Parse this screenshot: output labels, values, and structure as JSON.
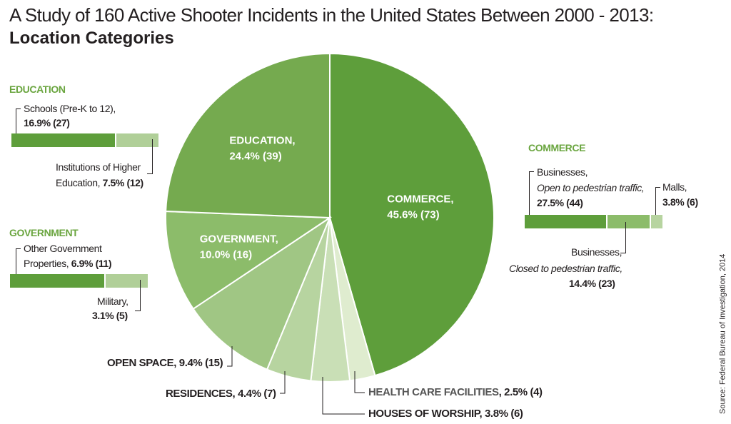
{
  "title": "A Study of 160 Active Shooter Incidents in the United States Between 2000 - 2013:",
  "subtitle": "Location Categories",
  "source": "Source: Federal Bureau of Investigation, 2014",
  "colors": {
    "commerce": "#5e9e3b",
    "education": "#75aa4f",
    "government": "#8cbc6a",
    "open_space": "#a0c684",
    "residences": "#b7d4a0",
    "houses_of_worship": "#c9dfb6",
    "health_care": "#dfeccf"
  },
  "chart_data": [
    {
      "type": "pie",
      "slices": [
        {
          "name": "COMMERCE",
          "value": 45.6,
          "count": 73,
          "label": "COMMERCE,",
          "value_label": "45.6% (73)"
        },
        {
          "name": "HEALTH CARE FACILITIES",
          "value": 2.5,
          "count": 4,
          "label": "HEALTH CARE FACILITIES",
          "value_label": ", 2.5% (4)"
        },
        {
          "name": "HOUSES OF WORSHIP",
          "value": 3.8,
          "count": 6,
          "label": "HOUSES OF WORSHIP",
          "value_label": ", 3.8% (6)"
        },
        {
          "name": "RESIDENCES",
          "value": 4.4,
          "count": 7,
          "label": "RESIDENCES",
          "value_label": ", 4.4% (7)"
        },
        {
          "name": "OPEN SPACE",
          "value": 9.4,
          "count": 15,
          "label": "OPEN SPACE",
          "value_label": ", 9.4% (15)"
        },
        {
          "name": "GOVERNMENT",
          "value": 10.0,
          "count": 16,
          "label": "GOVERNMENT,",
          "value_label": "10.0% (16)"
        },
        {
          "name": "EDUCATION",
          "value": 24.4,
          "count": 39,
          "label": "EDUCATION,",
          "value_label": "24.4% (39)"
        }
      ]
    },
    {
      "type": "bar",
      "orientation": "horizontal-stacked",
      "group": "EDUCATION",
      "series": [
        {
          "name": "Schools (Pre-K to 12)",
          "value": 16.9,
          "count": 27
        },
        {
          "name": "Institutions of Higher Education",
          "value": 7.5,
          "count": 12
        }
      ]
    },
    {
      "type": "bar",
      "orientation": "horizontal-stacked",
      "group": "GOVERNMENT",
      "series": [
        {
          "name": "Other Government Properties",
          "value": 6.9,
          "count": 11
        },
        {
          "name": "Military",
          "value": 3.1,
          "count": 5
        }
      ]
    },
    {
      "type": "bar",
      "orientation": "horizontal-stacked",
      "group": "COMMERCE",
      "series": [
        {
          "name": "Businesses, Open to pedestrian traffic",
          "value": 27.5,
          "count": 44
        },
        {
          "name": "Businesses, Closed to pedestrian traffic",
          "value": 14.4,
          "count": 23
        },
        {
          "name": "Malls",
          "value": 3.8,
          "count": 6
        }
      ]
    }
  ],
  "education": {
    "heading": "EDUCATION",
    "schools_label": "Schools (Pre-K to 12),",
    "schools_value": "16.9% (27)",
    "higher_label_1": "Institutions of Higher",
    "higher_label_2": "Education, ",
    "higher_value": "7.5% (12)"
  },
  "government": {
    "heading": "GOVERNMENT",
    "other_label_1": "Other Government",
    "other_label_2": "Properties, ",
    "other_value": "6.9% (11)",
    "military_label": "Military,",
    "military_value": "3.1% (5)"
  },
  "commerce": {
    "heading": "COMMERCE",
    "open_label_1": "Businesses,",
    "open_label_2": "Open to pedestrian traffic,",
    "open_value": "27.5% (44)",
    "malls_label": "Malls,",
    "malls_value": "3.8% (6)",
    "closed_label_1": "Businesses,",
    "closed_label_2": "Closed to pedestrian traffic,",
    "closed_value": "14.4% (23)"
  }
}
